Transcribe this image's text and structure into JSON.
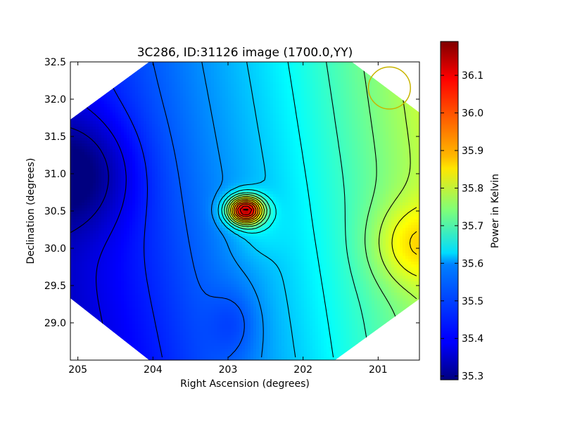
{
  "chart_data": {
    "type": "heatmap",
    "title": "3C286, ID:31126 image (1700.0,YY)",
    "xlabel": "Right Ascension (degrees)",
    "ylabel": "Declination (degrees)",
    "colorbar_label": "Power in Kelvin",
    "colormap": "jet",
    "xlim": [
      205.1,
      200.45
    ],
    "ylim": [
      28.5,
      32.5
    ],
    "x_ticks": [
      205,
      204,
      203,
      202,
      201
    ],
    "y_ticks": [
      29.0,
      29.5,
      30.0,
      30.5,
      31.0,
      31.5,
      32.0,
      32.5
    ],
    "x_tick_labels": [
      "205",
      "204",
      "203",
      "202",
      "201"
    ],
    "y_tick_labels": [
      "29.0",
      "29.5",
      "30.0",
      "30.5",
      "31.0",
      "31.5",
      "32.0",
      "32.5"
    ],
    "colorbar_range": [
      35.29,
      36.19
    ],
    "colorbar_ticks": [
      35.3,
      35.4,
      35.5,
      35.6,
      35.7,
      35.8,
      35.9,
      36.0,
      36.1
    ],
    "colorbar_tick_labels": [
      "35.3",
      "35.4",
      "35.5",
      "35.6",
      "35.7",
      "35.8",
      "35.9",
      "36.0",
      "36.1"
    ],
    "peak": {
      "ra": 202.77,
      "dec": 30.51,
      "value": 36.19
    },
    "secondary_max": {
      "ra": 200.55,
      "dec": 30.05,
      "value": 35.88
    },
    "minimum": {
      "ra": 205.0,
      "dec": 31.0,
      "value": 35.29
    },
    "marker_circle": {
      "ra": 200.85,
      "dec": 32.15,
      "radius_deg": 0.28,
      "color": "#c8b400"
    },
    "grid": false,
    "legend": "none"
  }
}
